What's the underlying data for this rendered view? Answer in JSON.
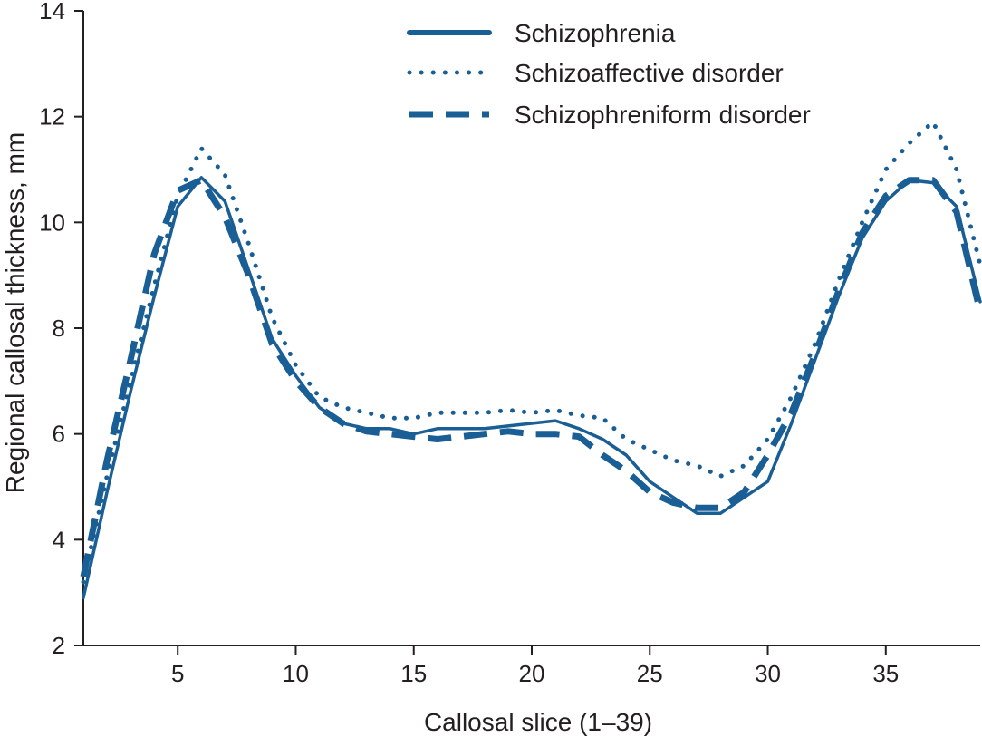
{
  "chart_data": {
    "type": "line",
    "title": "",
    "xlabel": "Callosal slice (1–39)",
    "ylabel": "Regional callosal thickness, mm",
    "xlim": [
      1,
      39
    ],
    "ylim": [
      2,
      14
    ],
    "xticks": [
      5,
      10,
      15,
      20,
      25,
      30,
      35
    ],
    "yticks": [
      2,
      4,
      6,
      8,
      10,
      12,
      14
    ],
    "grid": false,
    "legend": "top-center",
    "x": [
      1,
      2,
      3,
      4,
      5,
      6,
      7,
      8,
      9,
      10,
      11,
      12,
      13,
      14,
      15,
      16,
      17,
      18,
      19,
      20,
      21,
      22,
      23,
      24,
      25,
      26,
      27,
      28,
      29,
      30,
      31,
      32,
      33,
      34,
      35,
      36,
      37,
      38,
      39
    ],
    "series": [
      {
        "name": "Schizophrenia",
        "style": "solid",
        "color": "#1a5e96",
        "values": [
          2.9,
          4.9,
          6.8,
          8.6,
          10.3,
          10.85,
          10.4,
          9.1,
          7.8,
          7.1,
          6.5,
          6.2,
          6.1,
          6.1,
          6.0,
          6.1,
          6.1,
          6.1,
          6.15,
          6.2,
          6.25,
          6.1,
          5.9,
          5.6,
          5.1,
          4.8,
          4.5,
          4.5,
          4.8,
          5.1,
          6.2,
          7.4,
          8.6,
          9.7,
          10.4,
          10.8,
          10.75,
          10.3,
          8.5
        ]
      },
      {
        "name": "Schizoaffective disorder",
        "style": "dotted",
        "color": "#1a5e96",
        "values": [
          3.2,
          5.2,
          7.0,
          8.8,
          10.5,
          11.4,
          10.9,
          9.6,
          8.2,
          7.3,
          6.7,
          6.5,
          6.4,
          6.3,
          6.3,
          6.4,
          6.4,
          6.4,
          6.45,
          6.4,
          6.45,
          6.35,
          6.3,
          5.9,
          5.7,
          5.5,
          5.4,
          5.2,
          5.4,
          5.9,
          6.7,
          7.7,
          8.9,
          10.0,
          11.0,
          11.5,
          11.9,
          11.0,
          9.2
        ]
      },
      {
        "name": "Schizophreniform disorder",
        "style": "dashed",
        "color": "#1a5e96",
        "values": [
          3.3,
          5.5,
          7.4,
          9.4,
          10.6,
          10.8,
          10.1,
          9.0,
          7.7,
          7.0,
          6.5,
          6.2,
          6.05,
          6.0,
          5.95,
          5.9,
          5.95,
          6.0,
          6.05,
          6.0,
          6.0,
          5.95,
          5.6,
          5.3,
          4.9,
          4.7,
          4.6,
          4.6,
          4.9,
          5.6,
          6.4,
          7.5,
          8.7,
          9.8,
          10.5,
          10.8,
          10.8,
          10.2,
          8.3
        ]
      }
    ]
  }
}
